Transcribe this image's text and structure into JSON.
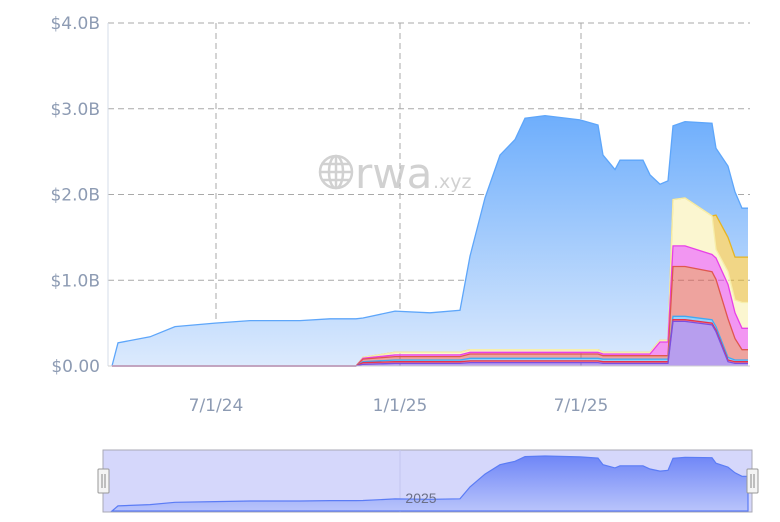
{
  "chart_data": {
    "type": "area",
    "stacked": true,
    "ylim": [
      0,
      4.0
    ],
    "yticks": [
      0,
      1,
      2,
      3,
      4
    ],
    "ytick_labels": [
      "$0.00",
      "$1.0B",
      "$2.0B",
      "$3.0B",
      "$4.0B"
    ],
    "xticks": [
      "2024-07-01",
      "2025-01-01",
      "2025-07-01"
    ],
    "xtick_labels": [
      "7/1/24",
      "1/1/25",
      "7/1/25"
    ],
    "xlim": [
      "2024-03-15",
      "2025-12-17"
    ],
    "grid": true,
    "unit": "USD billions",
    "watermark": {
      "main": "rwa",
      "suffix": ".xyz"
    },
    "navigator": {
      "label": "2025",
      "label_date": "2025-01-01"
    },
    "x": [
      "2024-03-19",
      "2024-03-25",
      "2024-04-26",
      "2024-05-21",
      "2024-06-30",
      "2024-08-04",
      "2024-09-23",
      "2024-10-23",
      "2024-11-18",
      "2024-11-25",
      "2024-12-27",
      "2025-01-31",
      "2025-03-02",
      "2025-03-12",
      "2025-03-27",
      "2025-04-11",
      "2025-04-26",
      "2025-05-06",
      "2025-05-26",
      "2025-06-30",
      "2025-07-18",
      "2025-07-23",
      "2025-08-04",
      "2025-08-09",
      "2025-09-01",
      "2025-09-08",
      "2025-09-18",
      "2025-09-26",
      "2025-10-01",
      "2025-10-13",
      "2025-11-09",
      "2025-11-13",
      "2025-11-25",
      "2025-12-02",
      "2025-12-09",
      "2025-12-15"
    ],
    "series": [
      {
        "color": "#7b4fe0",
        "values": [
          0,
          0,
          0,
          0,
          0,
          0,
          0,
          0,
          0,
          0.02,
          0.03,
          0.03,
          0.03,
          0.04,
          0.04,
          0.04,
          0.04,
          0.04,
          0.04,
          0.04,
          0.04,
          0.03,
          0.03,
          0.03,
          0.03,
          0.03,
          0.03,
          0.03,
          0.52,
          0.52,
          0.48,
          0.4,
          0.05,
          0.03,
          0.03,
          0.03
        ]
      },
      {
        "color": "#e8334a",
        "values": [
          0,
          0,
          0,
          0,
          0,
          0,
          0,
          0,
          0,
          0.02,
          0.02,
          0.02,
          0.02,
          0.02,
          0.02,
          0.02,
          0.02,
          0.02,
          0.02,
          0.02,
          0.02,
          0.02,
          0.02,
          0.02,
          0.02,
          0.02,
          0.02,
          0.02,
          0.02,
          0.02,
          0.02,
          0.02,
          0.02,
          0.02,
          0.02,
          0.02
        ]
      },
      {
        "color": "#3fa9f5",
        "values": [
          0,
          0,
          0,
          0,
          0,
          0,
          0,
          0,
          0,
          0.01,
          0.02,
          0.02,
          0.02,
          0.03,
          0.03,
          0.03,
          0.03,
          0.03,
          0.03,
          0.03,
          0.03,
          0.03,
          0.03,
          0.03,
          0.03,
          0.03,
          0.03,
          0.03,
          0.04,
          0.04,
          0.04,
          0.04,
          0.03,
          0.02,
          0.02,
          0.02
        ]
      },
      {
        "color": "#e0574f",
        "values": [
          0,
          0,
          0,
          0,
          0,
          0,
          0,
          0,
          0,
          0.03,
          0.04,
          0.04,
          0.04,
          0.05,
          0.05,
          0.05,
          0.05,
          0.05,
          0.05,
          0.05,
          0.05,
          0.04,
          0.04,
          0.04,
          0.04,
          0.04,
          0.04,
          0.04,
          0.58,
          0.58,
          0.56,
          0.55,
          0.45,
          0.25,
          0.12,
          0.12
        ]
      },
      {
        "color": "#e840e8",
        "values": [
          0,
          0,
          0,
          0,
          0,
          0,
          0,
          0,
          0,
          0.01,
          0.02,
          0.02,
          0.02,
          0.02,
          0.02,
          0.02,
          0.02,
          0.02,
          0.02,
          0.02,
          0.02,
          0.02,
          0.02,
          0.02,
          0.02,
          0.02,
          0.16,
          0.16,
          0.24,
          0.24,
          0.2,
          0.25,
          0.4,
          0.3,
          0.25,
          0.25
        ]
      },
      {
        "color": "#f7eeaa",
        "values": [
          0,
          0,
          0,
          0,
          0,
          0,
          0,
          0,
          0,
          0.01,
          0.03,
          0.03,
          0.03,
          0.03,
          0.03,
          0.03,
          0.03,
          0.03,
          0.03,
          0.03,
          0.03,
          0.02,
          0.02,
          0.02,
          0.02,
          0.02,
          0.02,
          0.02,
          0.54,
          0.56,
          0.45,
          0.1,
          0.15,
          0.15,
          0.3,
          0.3
        ]
      },
      {
        "color": "#e6b422",
        "values": [
          0,
          0,
          0,
          0,
          0,
          0,
          0,
          0,
          0,
          0,
          0,
          0,
          0,
          0,
          0,
          0,
          0,
          0,
          0,
          0,
          0,
          0,
          0,
          0,
          0,
          0,
          0,
          0,
          0,
          0,
          0,
          0.4,
          0.4,
          0.5,
          0.53,
          0.53
        ]
      },
      {
        "color": "#5ea6fa",
        "values": [
          0,
          0.27,
          0.34,
          0.46,
          0.5,
          0.53,
          0.53,
          0.55,
          0.55,
          0.46,
          0.48,
          0.46,
          0.49,
          1.09,
          1.77,
          2.27,
          2.45,
          2.7,
          2.73,
          2.68,
          2.62,
          2.3,
          2.13,
          2.24,
          2.24,
          2.07,
          1.82,
          1.86,
          0.86,
          0.89,
          1.08,
          0.78,
          0.83,
          0.76,
          0.57,
          0.57
        ]
      }
    ]
  }
}
